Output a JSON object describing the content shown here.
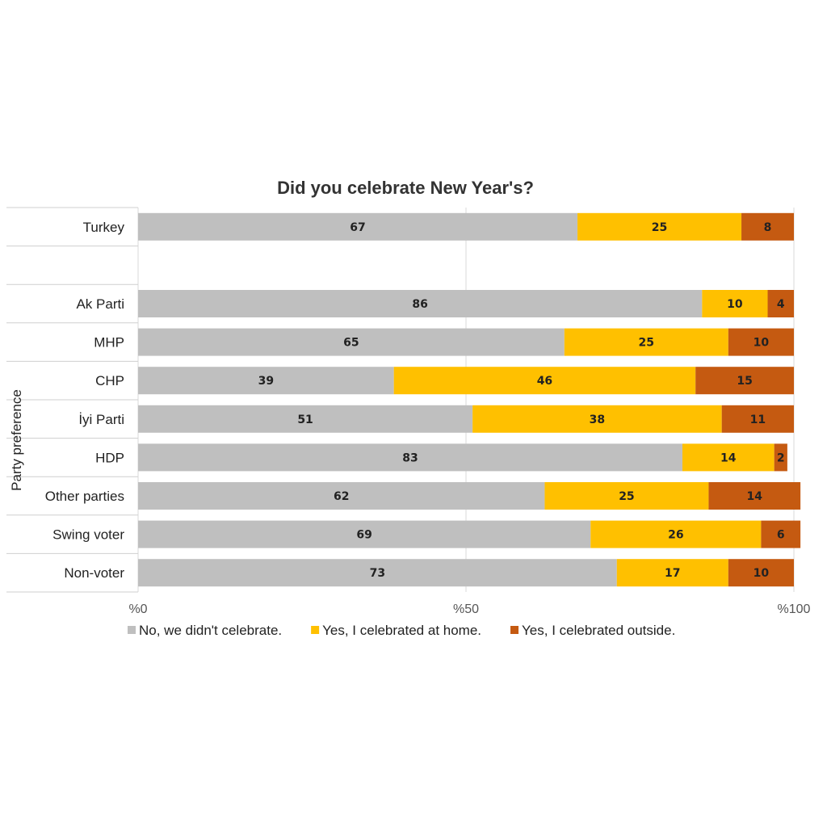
{
  "chart_data": {
    "type": "bar",
    "orientation": "horizontal",
    "stacked": true,
    "title": "Did you celebrate New Year's?",
    "ylabel": "Party preference",
    "categories": [
      "Turkey",
      "",
      "Ak Parti",
      "MHP",
      "CHP",
      "İyi Parti",
      "HDP",
      "Other parties",
      "Swing voter",
      "Non-voter"
    ],
    "series": [
      {
        "name": "No, we didn't celebrate.",
        "color": "#bfbfbf",
        "values": [
          67,
          null,
          86,
          65,
          39,
          51,
          83,
          62,
          69,
          73
        ]
      },
      {
        "name": "Yes, I celebrated at home.",
        "color": "#ffc000",
        "values": [
          25,
          null,
          10,
          25,
          46,
          38,
          14,
          25,
          26,
          17
        ]
      },
      {
        "name": "Yes, I celebrated outside.",
        "color": "#c55a11",
        "values": [
          8,
          null,
          4,
          10,
          15,
          11,
          2,
          14,
          6,
          10
        ]
      }
    ],
    "xlim": [
      0,
      100
    ],
    "xticks": [
      0,
      50,
      100
    ],
    "xtick_labels": [
      "%0",
      "%50",
      "%100"
    ],
    "grid": true,
    "legend_position": "bottom"
  }
}
